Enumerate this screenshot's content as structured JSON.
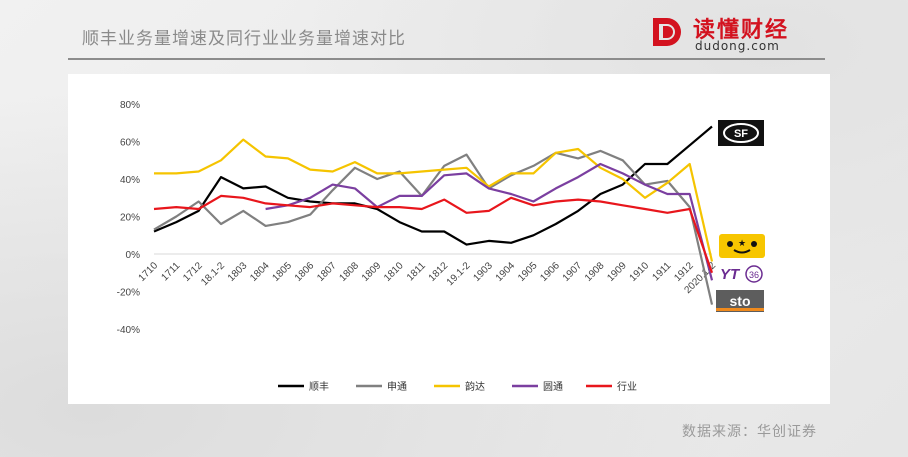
{
  "header": {
    "title": "顺丰业务量增速及同行业业务量增速对比"
  },
  "logo": {
    "name": "读懂财经",
    "url": "dudong.com"
  },
  "footer": {
    "source": "数据来源：华创证券"
  },
  "chart_data": {
    "type": "line",
    "title": "",
    "xlabel": "",
    "ylabel": "",
    "ylim": [
      -40,
      80
    ],
    "y_ticks": [
      "80%",
      "60%",
      "40%",
      "20%",
      "0%",
      "-20%",
      "-40%"
    ],
    "y_tick_values": [
      80,
      60,
      40,
      20,
      0,
      -20,
      -40
    ],
    "categories": [
      "1710",
      "1711",
      "1712",
      "18.1-2",
      "1803",
      "1804",
      "1805",
      "1806",
      "1807",
      "1808",
      "1809",
      "1810",
      "1811",
      "1812",
      "19.1-2",
      "1903",
      "1904",
      "1905",
      "1906",
      "1907",
      "1908",
      "1909",
      "1910",
      "1911",
      "1912",
      "2020.1-2"
    ],
    "grid": false,
    "legend_position": "bottom",
    "series": [
      {
        "name": "顺丰",
        "color": "#000000",
        "values": [
          12,
          17,
          23,
          41,
          35,
          36,
          30,
          28,
          27,
          27,
          24,
          17,
          12,
          12,
          5,
          7,
          6,
          10,
          16,
          23,
          32,
          37,
          48,
          48,
          58,
          68
        ]
      },
      {
        "name": "申通",
        "color": "#808080",
        "values": [
          13,
          20,
          28,
          16,
          23,
          15,
          17,
          21,
          34,
          46,
          40,
          44,
          31,
          47,
          53,
          35,
          42,
          47,
          54,
          51,
          55,
          50,
          37,
          39,
          25,
          -27
        ]
      },
      {
        "name": "韵达",
        "color": "#f5c400",
        "values": [
          43,
          43,
          44,
          50,
          61,
          52,
          51,
          45,
          44,
          49,
          43,
          43,
          44,
          45,
          46,
          36,
          43,
          43,
          54,
          56,
          46,
          40,
          30,
          38,
          48,
          -4
        ]
      },
      {
        "name": "圆通",
        "color": "#7b3fa0",
        "values": [
          null,
          null,
          null,
          null,
          null,
          24,
          26,
          30,
          37,
          35,
          25,
          31,
          31,
          42,
          43,
          35,
          32,
          28,
          35,
          41,
          48,
          43,
          37,
          32,
          32,
          -14
        ]
      },
      {
        "name": "行业",
        "color": "#e8161c",
        "values": [
          24,
          25,
          24,
          31,
          30,
          27,
          26,
          25,
          27,
          26,
          25,
          25,
          24,
          29,
          22,
          23,
          30,
          26,
          28,
          29,
          28,
          26,
          24,
          22,
          24,
          -10
        ]
      }
    ],
    "brand_icons": [
      "sf-express-logo-icon",
      "yunda-logo-icon",
      "yto-logo-icon",
      "sto-logo-icon"
    ]
  }
}
